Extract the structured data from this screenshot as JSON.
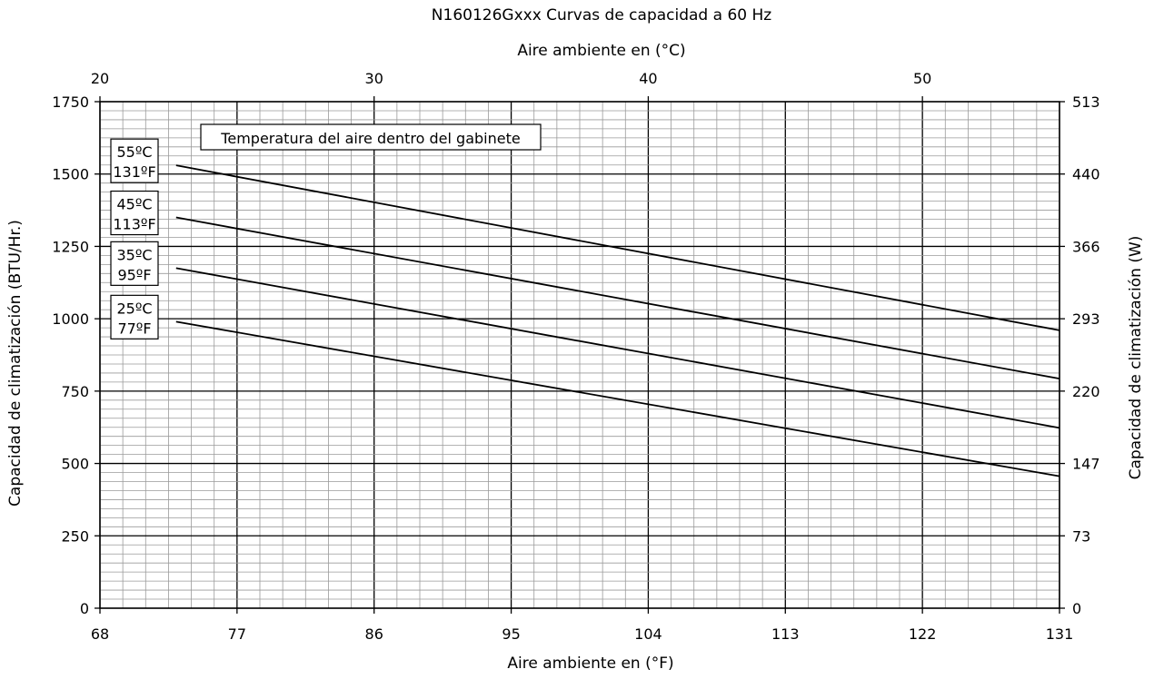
{
  "chart_data": {
    "type": "line",
    "title": "N160126Gxxx Curvas de capacidad a 60 Hz",
    "xlabel_bottom": "Aire ambiente en (°F)",
    "xlabel_top": "Aire ambiente en (°C)",
    "ylabel_left": "Capacidad de climatización (BTU/Hr.)",
    "ylabel_right": "Capacidad de climatización (W)",
    "xlim": [
      68,
      131
    ],
    "ylim": [
      0,
      1750
    ],
    "x_ticks_bottom": [
      "68",
      "77",
      "86",
      "95",
      "104",
      "113",
      "122",
      "131"
    ],
    "x_ticks_top": [
      "20",
      "30",
      "40",
      "50"
    ],
    "y_ticks_left": [
      "0",
      "250",
      "500",
      "750",
      "1000",
      "1250",
      "1500",
      "1750"
    ],
    "y_ticks_right": [
      "0",
      "73",
      "147",
      "220",
      "293",
      "366",
      "440",
      "513"
    ],
    "grid": true,
    "annotation": "Temperatura del aire dentro del gabinete",
    "series": [
      {
        "name": "55ºC 131ºF",
        "label_c": "55ºC",
        "label_f": "131ºF",
        "x": [
          73,
          131
        ],
        "y": [
          1530,
          960
        ]
      },
      {
        "name": "45ºC 113ºF",
        "label_c": "45ºC",
        "label_f": "113ºF",
        "x": [
          73,
          131
        ],
        "y": [
          1350,
          793
        ]
      },
      {
        "name": "35ºC 95ºF",
        "label_c": "35ºC",
        "label_f": "95ºF",
        "x": [
          73,
          131
        ],
        "y": [
          1175,
          623
        ]
      },
      {
        "name": "25ºC 77ºF",
        "label_c": "25ºC",
        "label_f": "77ºF",
        "x": [
          73,
          131
        ],
        "y": [
          990,
          456
        ]
      }
    ]
  }
}
